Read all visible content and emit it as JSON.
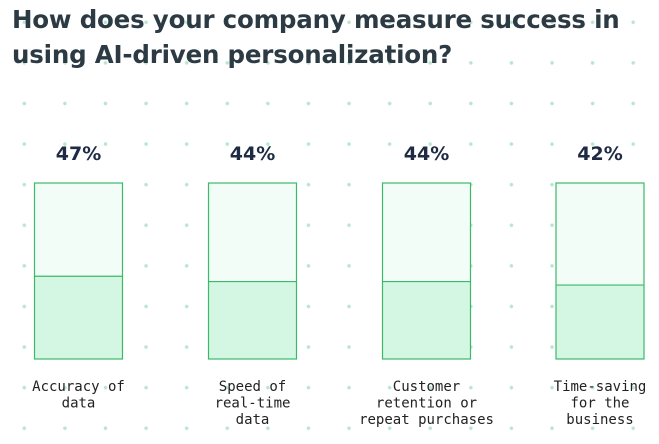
{
  "title": "How does your company measure success in using AI-driven personalization?",
  "colors": {
    "bar_fill": "#d4f7e3",
    "bar_track": "#f1fdf6",
    "bar_border": "#3cb86a",
    "dot": "#b8e6d0"
  },
  "chart_data": {
    "type": "bar",
    "title": "How does your company measure success in using AI-driven personalization?",
    "xlabel": "",
    "ylabel": "",
    "ylim": [
      0,
      100
    ],
    "grid": false,
    "legend": "none",
    "categories": [
      [
        "Accuracy of",
        "data"
      ],
      [
        "Speed of",
        "real-time",
        "data"
      ],
      [
        "Customer",
        "retention or",
        "repeat purchases"
      ],
      [
        "Time-saving",
        "for the",
        "business"
      ]
    ],
    "values": [
      47,
      44,
      44,
      42
    ],
    "value_labels": [
      "47%",
      "44%",
      "44%",
      "42%"
    ]
  }
}
